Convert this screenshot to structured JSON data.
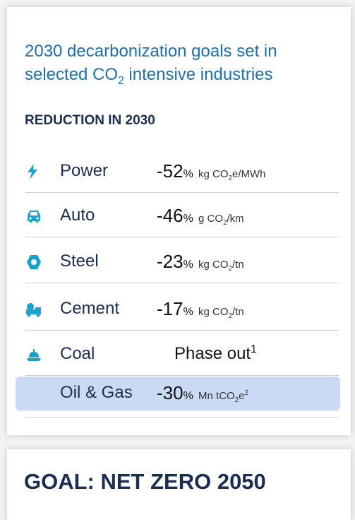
{
  "card": {
    "title": [
      {
        "t": "2030 decarbonization goals set in selected CO"
      },
      {
        "t": "2",
        "pos": "sub"
      },
      {
        "t": " intensive industries"
      }
    ],
    "subtitle": "REDUCTION IN 2030",
    "rows": [
      {
        "name": "Power",
        "value": "-52",
        "pct": "%",
        "unit": [
          {
            "t": "kg CO"
          },
          {
            "t": "2",
            "pos": "sub"
          },
          {
            "t": "e/MWh"
          }
        ]
      },
      {
        "name": "Auto",
        "value": "-46",
        "pct": "%",
        "unit": [
          {
            "t": "g CO"
          },
          {
            "t": "2",
            "pos": "sub"
          },
          {
            "t": "/km"
          }
        ]
      },
      {
        "name": "Steel",
        "value": "-23",
        "pct": "%",
        "unit": [
          {
            "t": "kg CO"
          },
          {
            "t": "2",
            "pos": "sub"
          },
          {
            "t": "/tn"
          }
        ]
      },
      {
        "name": "Cement",
        "value": "-17",
        "pct": "%",
        "unit": [
          {
            "t": "kg CO"
          },
          {
            "t": "2",
            "pos": "sub"
          },
          {
            "t": "/tn"
          }
        ]
      },
      {
        "name": "Coal",
        "text": [
          {
            "t": "Phase out"
          },
          {
            "t": "1",
            "pos": "sup"
          }
        ]
      },
      {
        "name": "Oil & Gas",
        "value": "-30",
        "pct": "%",
        "unit": [
          {
            "t": "Mn tCO"
          },
          {
            "t": "2",
            "pos": "sub"
          },
          {
            "t": "e"
          },
          {
            "t": "2",
            "pos": "sup"
          }
        ],
        "highlight": true
      }
    ]
  },
  "goal": "GOAL: NET ZERO 2050"
}
